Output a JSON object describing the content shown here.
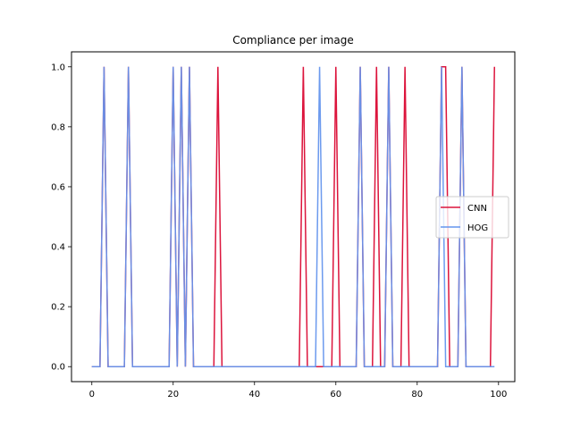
{
  "chart_data": {
    "type": "line",
    "title": "Compliance per image",
    "xlabel": "",
    "ylabel": "",
    "xlim": [
      -5,
      104
    ],
    "ylim": [
      -0.05,
      1.05
    ],
    "xticks": [
      0,
      20,
      40,
      60,
      80,
      100
    ],
    "yticks": [
      0.0,
      0.2,
      0.4,
      0.6,
      0.8,
      1.0
    ],
    "xtick_labels": [
      "0",
      "20",
      "40",
      "60",
      "80",
      "100"
    ],
    "ytick_labels": [
      "0.0",
      "0.2",
      "0.4",
      "0.6",
      "0.8",
      "1.0"
    ],
    "grid": false,
    "legend_position": "center-right",
    "x": [
      0,
      1,
      2,
      3,
      4,
      5,
      6,
      7,
      8,
      9,
      10,
      11,
      12,
      13,
      14,
      15,
      16,
      17,
      18,
      19,
      20,
      21,
      22,
      23,
      24,
      25,
      26,
      27,
      28,
      29,
      30,
      31,
      32,
      33,
      34,
      35,
      36,
      37,
      38,
      39,
      40,
      41,
      42,
      43,
      44,
      45,
      46,
      47,
      48,
      49,
      50,
      51,
      52,
      53,
      54,
      55,
      56,
      57,
      58,
      59,
      60,
      61,
      62,
      63,
      64,
      65,
      66,
      67,
      68,
      69,
      70,
      71,
      72,
      73,
      74,
      75,
      76,
      77,
      78,
      79,
      80,
      81,
      82,
      83,
      84,
      85,
      86,
      87,
      88,
      89,
      90,
      91,
      92,
      93,
      94,
      95,
      96,
      97,
      98,
      99
    ],
    "series": [
      {
        "name": "CNN",
        "color": "#dc143c",
        "values": [
          0,
          0,
          0,
          1,
          0,
          0,
          0,
          0,
          0,
          1,
          0,
          0,
          0,
          0,
          0,
          0,
          0,
          0,
          0,
          0,
          1,
          0,
          1,
          0,
          1,
          0,
          0,
          0,
          0,
          0,
          0,
          1,
          0,
          0,
          0,
          0,
          0,
          0,
          0,
          0,
          0,
          0,
          0,
          0,
          0,
          0,
          0,
          0,
          0,
          0,
          0,
          0,
          1,
          0,
          0,
          0,
          0,
          0,
          0,
          0,
          1,
          0,
          0,
          0,
          0,
          0,
          1,
          0,
          0,
          0,
          1,
          0,
          0,
          1,
          0,
          0,
          0,
          1,
          0,
          0,
          0,
          0,
          0,
          0,
          0,
          0,
          1,
          1,
          0,
          0,
          0,
          1,
          0,
          0,
          0,
          0,
          0,
          0,
          0,
          1
        ]
      },
      {
        "name": "HOG",
        "color": "#6495ed",
        "values": [
          0,
          0,
          0,
          1,
          0,
          0,
          0,
          0,
          0,
          1,
          0,
          0,
          0,
          0,
          0,
          0,
          0,
          0,
          0,
          0,
          1,
          0,
          1,
          0,
          1,
          0,
          0,
          0,
          0,
          0,
          0,
          0,
          0,
          0,
          0,
          0,
          0,
          0,
          0,
          0,
          0,
          0,
          0,
          0,
          0,
          0,
          0,
          0,
          0,
          0,
          0,
          0,
          0,
          0,
          0,
          0,
          1,
          0,
          0,
          0,
          0,
          0,
          0,
          0,
          0,
          0,
          1,
          0,
          0,
          0,
          0,
          0,
          0,
          1,
          0,
          0,
          0,
          0,
          0,
          0,
          0,
          0,
          0,
          0,
          0,
          0,
          1,
          0,
          0,
          0,
          0,
          1,
          0,
          0,
          0,
          0,
          0,
          0,
          0,
          0
        ]
      }
    ]
  }
}
